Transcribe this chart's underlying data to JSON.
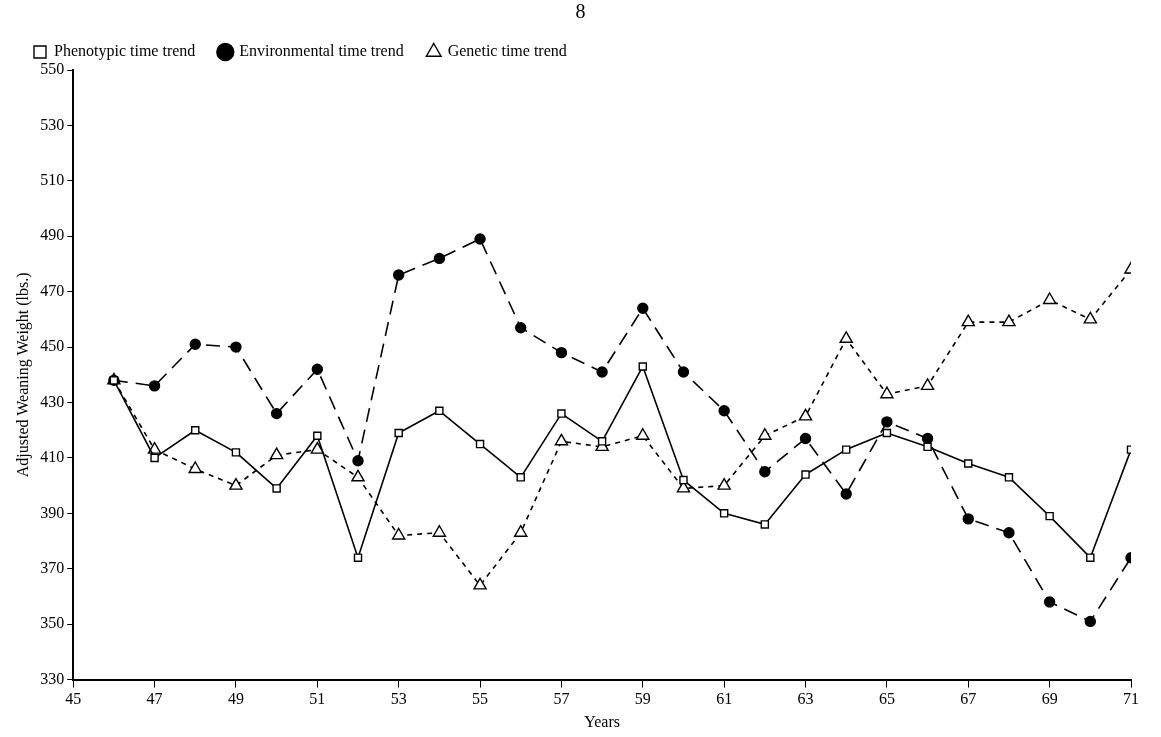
{
  "chart_data": {
    "type": "line",
    "xlabel": "Years",
    "ylabel": "Adjusted Weaning Weight (lbs.)",
    "annotations": [
      "8"
    ],
    "x": [
      46,
      47,
      48,
      49,
      50,
      51,
      52,
      53,
      54,
      55,
      56,
      57,
      58,
      59,
      60,
      61,
      62,
      63,
      64,
      65,
      66,
      67,
      68,
      69,
      70,
      71
    ],
    "xlim": [
      45,
      71
    ],
    "xticks": [
      45,
      47,
      49,
      51,
      53,
      55,
      57,
      59,
      61,
      63,
      65,
      67,
      69,
      71
    ],
    "ylim": [
      330,
      550
    ],
    "yticks": [
      330,
      350,
      370,
      390,
      410,
      430,
      450,
      470,
      490,
      510,
      530,
      550
    ],
    "grid": false,
    "legend": "top left",
    "series": [
      {
        "name": "Phenotypic time trend",
        "color": "#000000",
        "marker": "square",
        "line_style": "solid",
        "values": [
          438,
          410,
          420,
          412,
          399,
          418,
          374,
          419,
          427,
          415,
          403,
          426,
          416,
          443,
          402,
          390,
          386,
          404,
          413,
          419,
          414,
          408,
          403,
          389,
          374,
          413
        ]
      },
      {
        "name": "Environmental time trend",
        "color": "#000000",
        "marker": "circle",
        "line_style": "dashed",
        "values": [
          438,
          436,
          451,
          450,
          426,
          442,
          409,
          476,
          482,
          489,
          457,
          448,
          441,
          464,
          441,
          427,
          405,
          417,
          397,
          423,
          417,
          388,
          383,
          358,
          351,
          374
        ]
      },
      {
        "name": "Genetic time trend",
        "color": "#000000",
        "marker": "triangle",
        "line_style": "dotted",
        "values": [
          438,
          413,
          406,
          400,
          411,
          413,
          403,
          382,
          383,
          364,
          383,
          416,
          414,
          418,
          399,
          400,
          418,
          425,
          453,
          433,
          436,
          459,
          459,
          467,
          460,
          478
        ]
      }
    ]
  }
}
